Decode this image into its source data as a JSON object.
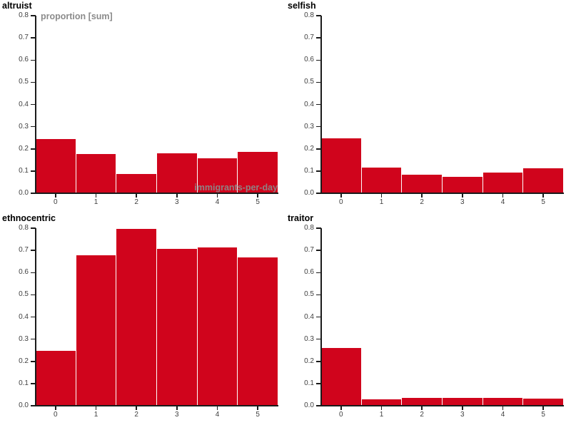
{
  "page": {
    "background": "#ffffff"
  },
  "colors": {
    "bar": "#d0041c",
    "bar_gap": "#ffffff",
    "axis": "#1a1a1a",
    "tick_label": "#3f3f3f",
    "title": "#000000",
    "inplot_label": "#8b8b8b"
  },
  "chart_data": [
    {
      "type": "bar",
      "title": "altruist",
      "ylabel": "proportion [sum]",
      "xlabel": "immigrants-per-day",
      "categories": [
        "0",
        "1",
        "2",
        "3",
        "4",
        "5"
      ],
      "values": [
        0.245,
        0.176,
        0.086,
        0.18,
        0.158,
        0.187
      ],
      "yticks": [
        "0.0",
        "0.1",
        "0.2",
        "0.3",
        "0.4",
        "0.5",
        "0.6",
        "0.7",
        "0.8"
      ],
      "ylim": [
        0,
        0.8
      ],
      "grid": "off",
      "legend": "none"
    },
    {
      "type": "bar",
      "title": "selfish",
      "ylabel": "",
      "xlabel": "",
      "categories": [
        "0",
        "1",
        "2",
        "3",
        "4",
        "5"
      ],
      "values": [
        0.248,
        0.116,
        0.082,
        0.075,
        0.093,
        0.113
      ],
      "yticks": [
        "0.0",
        "0.1",
        "0.2",
        "0.3",
        "0.4",
        "0.5",
        "0.6",
        "0.7",
        "0.8"
      ],
      "ylim": [
        0,
        0.8
      ],
      "grid": "off",
      "legend": "none"
    },
    {
      "type": "bar",
      "title": "ethnocentric",
      "ylabel": "",
      "xlabel": "",
      "categories": [
        "0",
        "1",
        "2",
        "3",
        "4",
        "5"
      ],
      "values": [
        0.246,
        0.679,
        0.797,
        0.708,
        0.714,
        0.669
      ],
      "yticks": [
        "0.0",
        "0.1",
        "0.2",
        "0.3",
        "0.4",
        "0.5",
        "0.6",
        "0.7",
        "0.8"
      ],
      "ylim": [
        0,
        0.8
      ],
      "grid": "off",
      "legend": "none"
    },
    {
      "type": "bar",
      "title": "traitor",
      "ylabel": "",
      "xlabel": "",
      "categories": [
        "0",
        "1",
        "2",
        "3",
        "4",
        "5"
      ],
      "values": [
        0.261,
        0.029,
        0.035,
        0.037,
        0.035,
        0.031
      ],
      "yticks": [
        "0.0",
        "0.1",
        "0.2",
        "0.3",
        "0.4",
        "0.5",
        "0.6",
        "0.7",
        "0.8"
      ],
      "ylim": [
        0,
        0.8
      ],
      "grid": "off",
      "legend": "none"
    }
  ]
}
